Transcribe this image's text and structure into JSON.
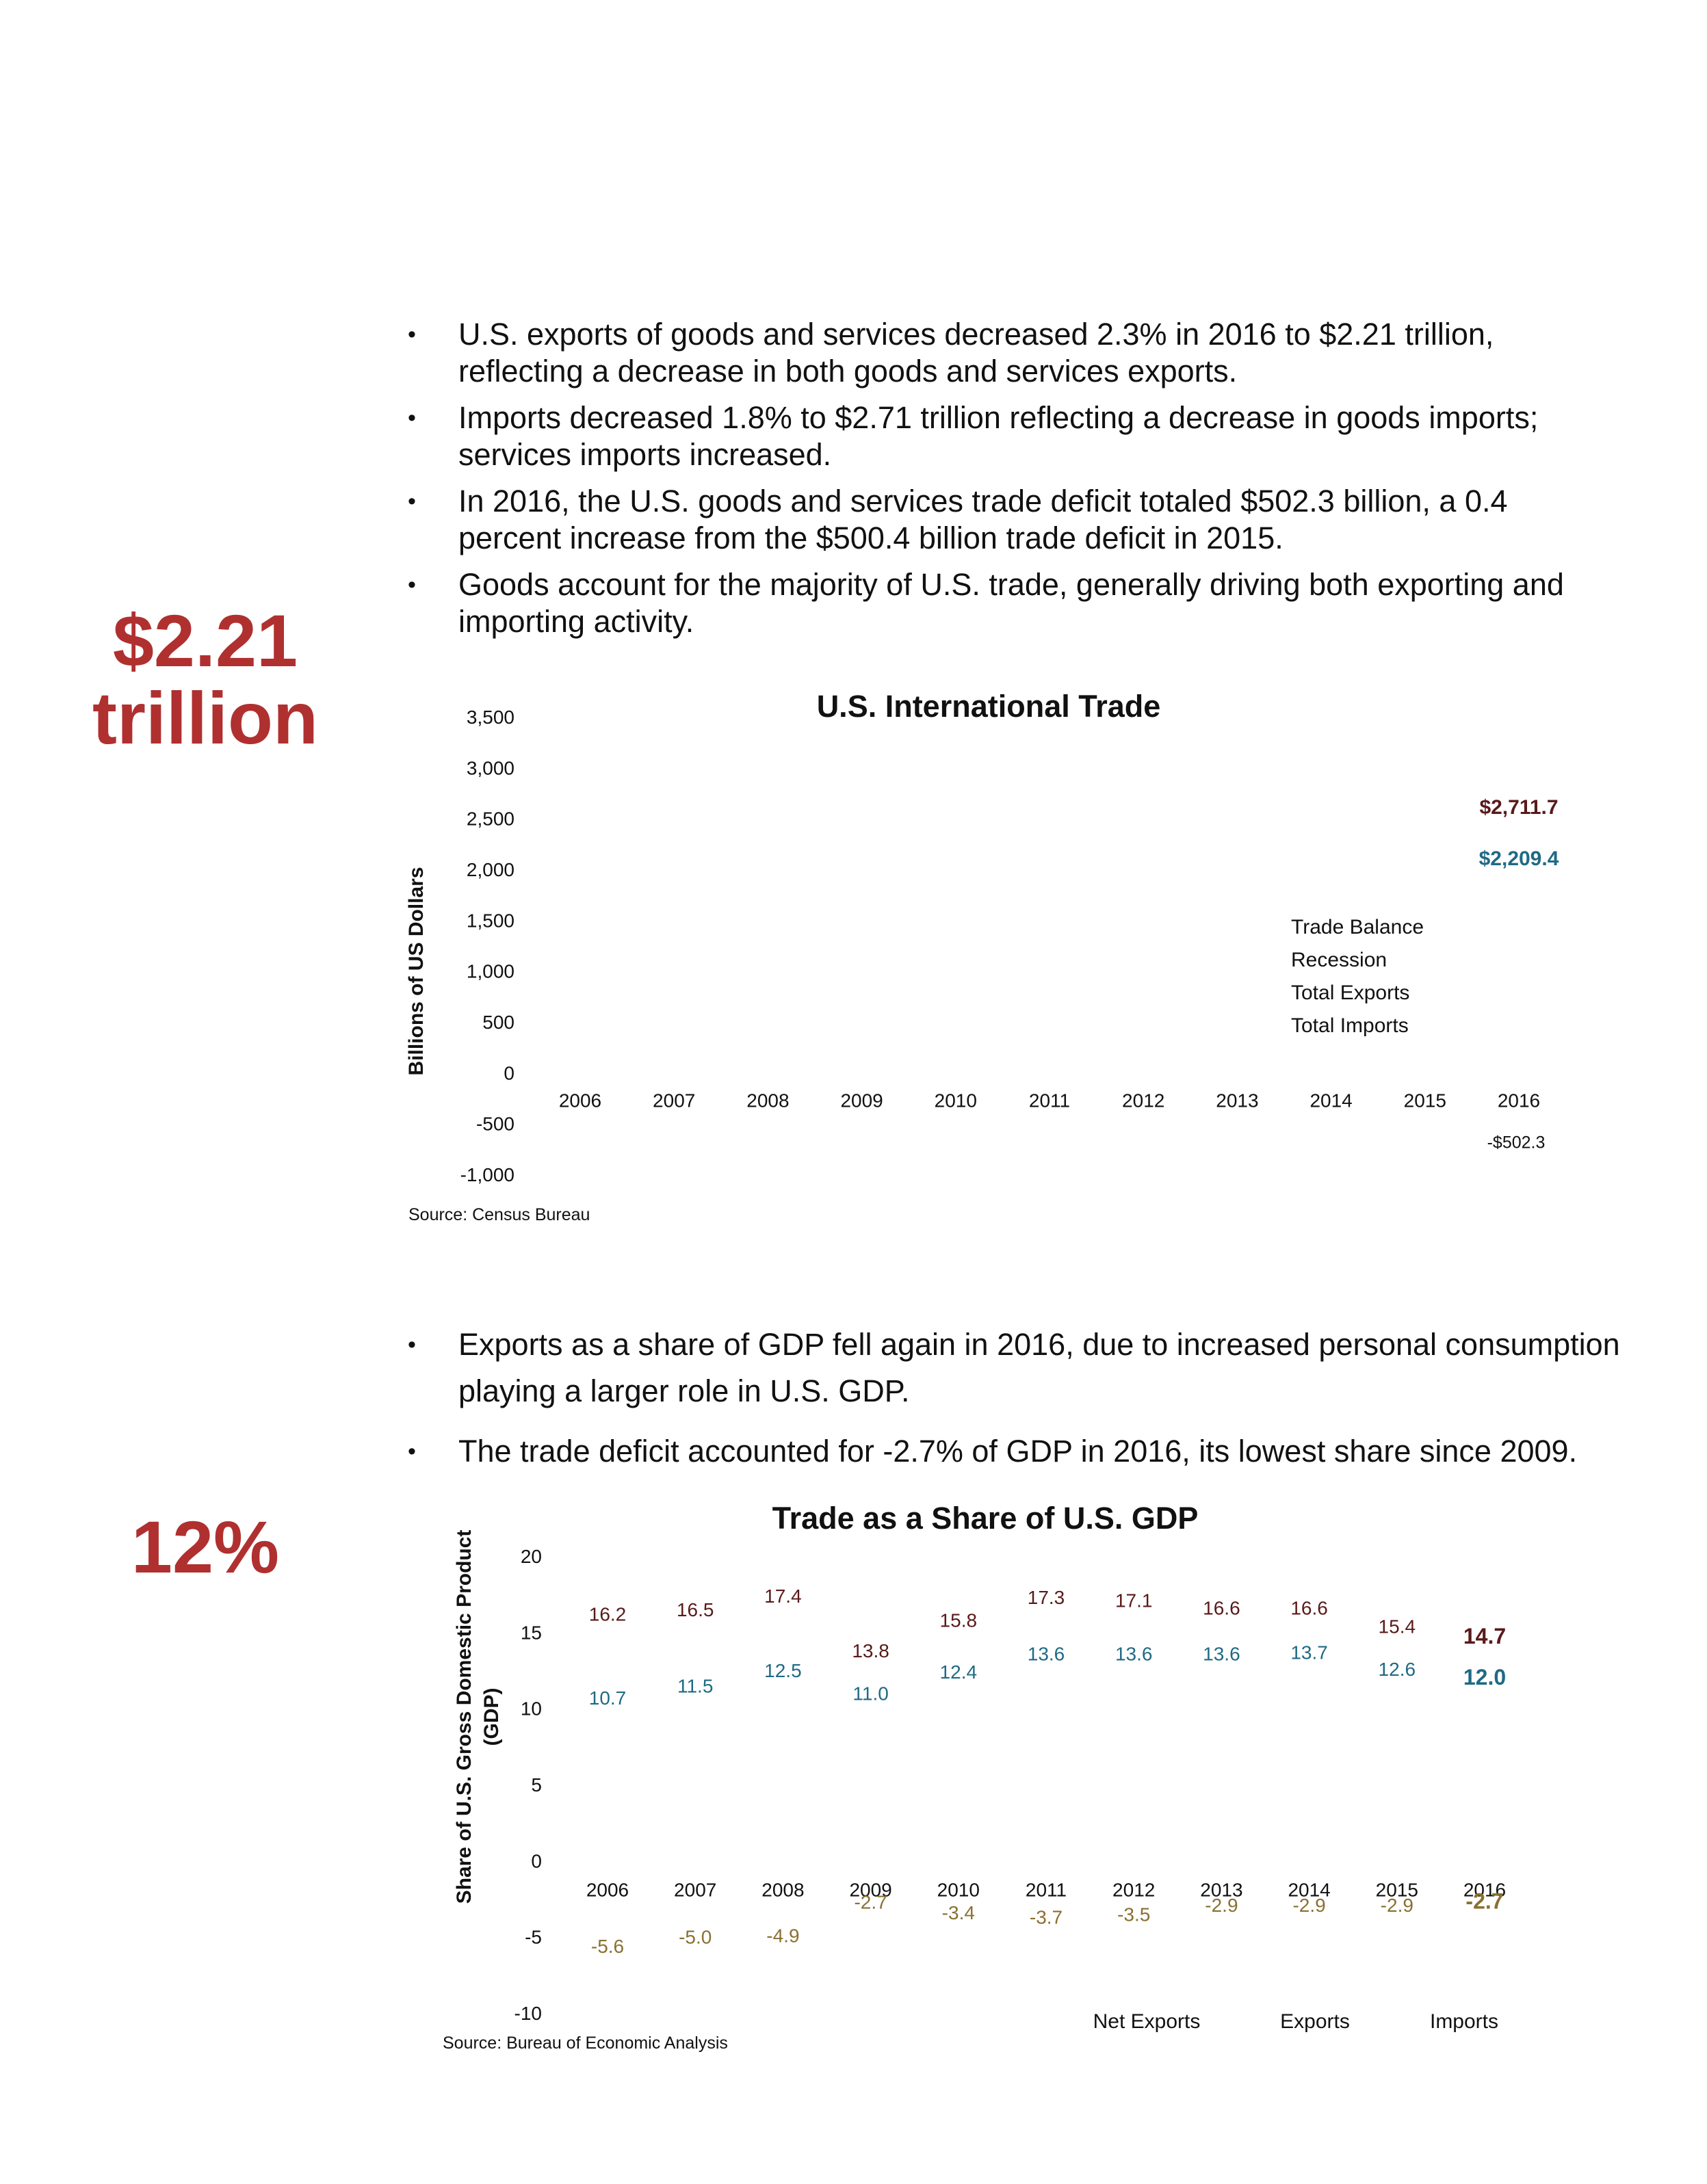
{
  "callouts": {
    "export_total": "$2.21 trillion",
    "export_total_line1": "$2.21",
    "export_total_line2": "trillion",
    "gdp_share": "12%"
  },
  "bullets_top": [
    "U.S. exports of goods and services decreased 2.3%  in 2016 to $2.21 trillion, reflecting a decrease in both goods and services exports.",
    "Imports decreased 1.8% to $2.71 trillion reflecting a decrease in goods imports; services imports increased.",
    "In 2016, the U.S. goods and services trade deficit totaled $502.3 billion, a 0.4 percent increase from the $500.4 billion trade deficit in 2015.",
    "Goods account for the majority of U.S. trade, generally driving both exporting and importing activity."
  ],
  "bullets_bottom": [
    "Exports as a share of GDP fell again in 2016, due to increased personal consumption playing a larger role in U.S. GDP.",
    "The trade deficit accounted for -2.7% of GDP in 2016, its lowest share since 2009."
  ],
  "colors": {
    "callout": "#b03030",
    "imports": "#5a1a1a",
    "exports": "#1f6a85",
    "net": "#8a7030"
  },
  "chart_data": [
    {
      "type": "line",
      "title": "U.S. International Trade",
      "ylabel": "Billions of US Dollars",
      "xlabel": "",
      "ylim": [
        -1000,
        3500
      ],
      "y_ticks": [
        "3,500",
        "3,000",
        "2,500",
        "2,000",
        "1,500",
        "1,000",
        "500",
        "0",
        "-500",
        "-1,000"
      ],
      "categories": [
        "2006",
        "2007",
        "2008",
        "2009",
        "2010",
        "2011",
        "2012",
        "2013",
        "2014",
        "2015",
        "2016"
      ],
      "series": [
        {
          "name": "Total Imports",
          "color": "#5a1a1a",
          "values": [
            null,
            null,
            null,
            null,
            null,
            null,
            null,
            null,
            null,
            null,
            2711.7
          ]
        },
        {
          "name": "Total Exports",
          "color": "#1f6a85",
          "values": [
            null,
            null,
            null,
            null,
            null,
            null,
            null,
            null,
            null,
            null,
            2209.4
          ]
        },
        {
          "name": "Trade Balance",
          "color": "#111111",
          "values": [
            null,
            null,
            null,
            null,
            null,
            null,
            null,
            null,
            null,
            null,
            -502.3
          ]
        }
      ],
      "legend_items": [
        "Trade Balance",
        "Recession",
        "Total Exports",
        "Total Imports"
      ],
      "legend_position": "right",
      "annotations": [
        {
          "text": "$2,711.7",
          "x": "2016",
          "y": 2711.7,
          "color": "#5a1a1a"
        },
        {
          "text": "$2,209.4",
          "x": "2016",
          "y": 2209.4,
          "color": "#1f6a85"
        },
        {
          "text": "-$502.3",
          "x": "2016",
          "y": -502.3,
          "color": "#111111"
        }
      ],
      "source": "Source: Census Bureau"
    },
    {
      "type": "line",
      "title": "Trade as a Share of U.S. GDP",
      "ylabel": "Share of U.S. Gross Domestic Product (GDP)",
      "ylabel_line1": "Share of U.S. Gross Domestic Product",
      "ylabel_line2": "(GDP)",
      "xlabel": "",
      "ylim": [
        -10,
        20
      ],
      "y_ticks": [
        "20",
        "15",
        "10",
        "5",
        "0",
        "-5",
        "-10"
      ],
      "categories": [
        "2006",
        "2007",
        "2008",
        "2009",
        "2010",
        "2011",
        "2012",
        "2013",
        "2014",
        "2015",
        "2016"
      ],
      "series": [
        {
          "name": "Imports",
          "color": "#5a1a1a",
          "values": [
            16.2,
            16.5,
            17.4,
            13.8,
            15.8,
            17.3,
            17.1,
            16.6,
            16.6,
            15.4,
            14.7
          ],
          "labels": [
            "16.2",
            "16.5",
            "17.4",
            "13.8",
            "15.8",
            "17.3",
            "17.1",
            "16.6",
            "16.6",
            "15.4",
            "14.7"
          ]
        },
        {
          "name": "Exports",
          "color": "#1f6a85",
          "values": [
            10.7,
            11.5,
            12.5,
            11.0,
            12.4,
            13.6,
            13.6,
            13.6,
            13.7,
            12.6,
            12.0
          ],
          "labels": [
            "10.7",
            "11.5",
            "12.5",
            "11.0",
            "12.4",
            "13.6",
            "13.6",
            "13.6",
            "13.7",
            "12.6",
            "12.0"
          ]
        },
        {
          "name": "Net Exports",
          "color": "#8a7030",
          "values": [
            -5.6,
            -5.0,
            -4.9,
            -2.7,
            -3.4,
            -3.7,
            -3.5,
            -2.9,
            -2.9,
            -2.9,
            -2.7
          ],
          "labels": [
            "-5.6",
            "-5.0",
            "-4.9",
            "-2.7",
            "-3.4",
            "-3.7",
            "-3.5",
            "-2.9",
            "-2.9",
            "-2.9",
            "-2.7"
          ]
        }
      ],
      "legend_items": [
        "Net Exports",
        "Exports",
        "Imports"
      ],
      "legend_position": "bottom-right",
      "source": "Source: Bureau of Economic Analysis"
    }
  ]
}
